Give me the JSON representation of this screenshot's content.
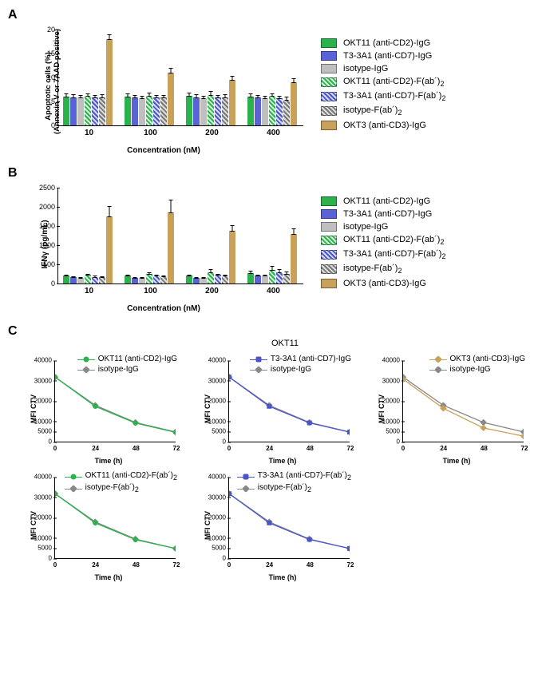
{
  "panelA": {
    "label": "A",
    "type": "bar",
    "ylabel": "Apoptotic cells (%)\n(Annexin V or 7AAD positive)",
    "xlabel": "Concentration (nM)",
    "ylim": [
      0,
      20
    ],
    "ytick_step": 5,
    "categories": [
      "10",
      "100",
      "200",
      "400"
    ],
    "series": [
      {
        "label": "OKT11 (anti-CD2)-IgG",
        "color": "#2bb24c",
        "hatch": null
      },
      {
        "label": "T3-3A1 (anti-CD7)-IgG",
        "color": "#5a63d6",
        "hatch": null
      },
      {
        "label": "isotype-IgG",
        "color": "#bfbfbf",
        "hatch": null
      },
      {
        "label": "OKT11 (anti-CD2)-F(ab´)₂",
        "color": "#2bb24c",
        "hatch": "green"
      },
      {
        "label": "T3-3A1 (anti-CD7)-F(ab´)₂",
        "color": "#5a63d6",
        "hatch": "blue"
      },
      {
        "label": "isotype-F(ab´)₂",
        "color": "#9a9a9a",
        "hatch": "gray"
      },
      {
        "label": "OKT3 (anti-CD3)-IgG",
        "color": "#c8a15a",
        "hatch": null
      }
    ],
    "values": [
      [
        6.0,
        5.9,
        5.8,
        6.1,
        5.8,
        5.9,
        18.0
      ],
      [
        6.0,
        5.8,
        5.7,
        6.2,
        5.8,
        5.8,
        11.0
      ],
      [
        6.2,
        5.9,
        5.6,
        6.4,
        5.8,
        5.9,
        9.5
      ],
      [
        6.0,
        5.8,
        5.6,
        6.1,
        5.7,
        5.4,
        9.0
      ]
    ],
    "errors": [
      [
        0.8,
        0.7,
        0.7,
        0.8,
        0.7,
        0.7,
        1.2
      ],
      [
        0.8,
        0.7,
        0.7,
        0.8,
        0.7,
        0.7,
        1.1
      ],
      [
        0.8,
        0.7,
        0.7,
        0.9,
        0.7,
        0.7,
        1.0
      ],
      [
        0.8,
        0.7,
        0.7,
        0.8,
        0.7,
        0.7,
        1.0
      ]
    ]
  },
  "panelB": {
    "label": "B",
    "type": "bar",
    "ylabel": "IFNγ (pg/mL)",
    "xlabel": "Concentration (nM)",
    "ylim": [
      0,
      2500
    ],
    "ytick_step": 500,
    "categories": [
      "10",
      "100",
      "200",
      "400"
    ],
    "series_ref": "panelA.series",
    "values": [
      [
        210,
        160,
        150,
        220,
        170,
        160,
        1750
      ],
      [
        200,
        150,
        150,
        250,
        200,
        180,
        1850
      ],
      [
        200,
        150,
        150,
        300,
        220,
        200,
        1370
      ],
      [
        280,
        200,
        200,
        350,
        300,
        260,
        1300
      ]
    ],
    "errors": [
      [
        50,
        40,
        40,
        60,
        50,
        40,
        300
      ],
      [
        50,
        40,
        40,
        70,
        50,
        50,
        350
      ],
      [
        50,
        40,
        40,
        90,
        60,
        50,
        180
      ],
      [
        70,
        50,
        50,
        120,
        90,
        70,
        150
      ]
    ]
  },
  "panelC": {
    "label": "C",
    "title": "OKT11",
    "ylabel": "MFI CTV",
    "xlabel": "Time (h)",
    "xlim": [
      0,
      72
    ],
    "xticks": [
      0,
      24,
      48,
      72
    ],
    "ylim": [
      0,
      40000
    ],
    "yticks": [
      0,
      5000,
      10000,
      20000,
      30000,
      40000
    ],
    "isotype_igg": {
      "label": "isotype-IgG",
      "color": "#888",
      "marker": "diamond"
    },
    "isotype_fab": {
      "label": "isotype-F(ab´)₂",
      "color": "#888",
      "marker": "diamond"
    },
    "isotype_values": [
      32000,
      18000,
      9500,
      4800
    ],
    "charts": [
      {
        "label": "OKT11 (anti-CD2)-IgG",
        "color": "#2bb24c",
        "marker": "circle",
        "values": [
          32000,
          17500,
          9200,
          4600
        ],
        "isotype": "isotype_igg"
      },
      {
        "label": "T3-3A1 (anti-CD7)-IgG",
        "color": "#4a55c8",
        "marker": "square",
        "values": [
          32000,
          17500,
          9300,
          4700
        ],
        "isotype": "isotype_igg"
      },
      {
        "label": "OKT3 (anti-CD3)-IgG",
        "color": "#c8a15a",
        "marker": "diamond",
        "values": [
          31000,
          16500,
          6800,
          2700
        ],
        "isotype": "isotype_igg"
      },
      {
        "label": "OKT11 (anti-CD2)-F(ab´)₂",
        "color": "#2bb24c",
        "marker": "circle",
        "values": [
          32000,
          17500,
          9200,
          4800
        ],
        "isotype": "isotype_fab"
      },
      {
        "label": "T3-3A1 (anti-CD7)-F(ab´)₂",
        "color": "#4a55c8",
        "marker": "square",
        "values": [
          32000,
          17500,
          9300,
          4800
        ],
        "isotype": "isotype_fab"
      }
    ]
  },
  "colors": {
    "axis": "#000",
    "bg": "#ffffff"
  }
}
